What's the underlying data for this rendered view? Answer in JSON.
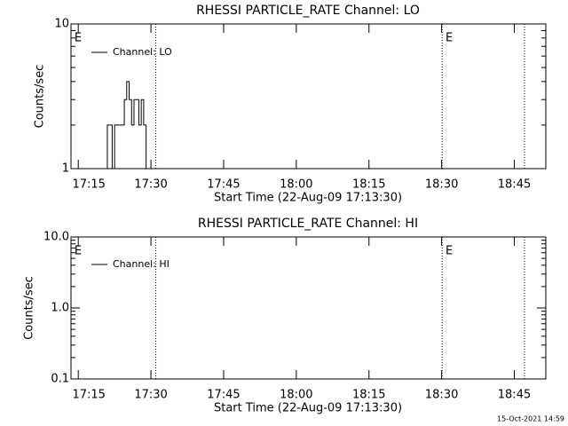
{
  "chart_data": [
    {
      "type": "line",
      "title": "RHESSI PARTICLE_RATE Channel: LO",
      "ylabel": "Counts/sec",
      "xlabel": "Start Time (22-Aug-09 17:13:30)",
      "x": [
        1040.5,
        1041,
        1041.5,
        1042,
        1042.5,
        1043,
        1043.5,
        1044,
        1044.5,
        1045,
        1045.5,
        1046,
        1046.5,
        1047,
        1047.5,
        1048,
        1048.5,
        1049
      ],
      "series": [
        {
          "name": "Channel: LO",
          "color": "#000000",
          "values": [
            1,
            2,
            2,
            1,
            2,
            2,
            2,
            2,
            3,
            4,
            3,
            2,
            3,
            3,
            2,
            3,
            2,
            1
          ]
        }
      ],
      "xlim": [
        1033.5,
        1131.5
      ],
      "xticks": [
        {
          "value": 1035,
          "label": "17:15"
        },
        {
          "value": 1050,
          "label": "17:30"
        },
        {
          "value": 1065,
          "label": "17:45"
        },
        {
          "value": 1080,
          "label": "18:00"
        },
        {
          "value": 1095,
          "label": "18:15"
        },
        {
          "value": 1110,
          "label": "18:30"
        },
        {
          "value": 1125,
          "label": "18:45"
        }
      ],
      "ylim": [
        1,
        10
      ],
      "yticks": [
        1,
        10
      ],
      "log_y": true,
      "vlines": [
        1051.0,
        1110.1,
        1127.1
      ],
      "annotations": [
        {
          "text": "E",
          "x": 1034.2
        },
        {
          "text": "E",
          "x": 1110.8
        }
      ],
      "legend": "upper left"
    },
    {
      "type": "line",
      "title": "RHESSI PARTICLE_RATE Channel: HI",
      "ylabel": "Counts/sec",
      "xlabel": "Start Time (22-Aug-09 17:13:30)",
      "x": [],
      "series": [
        {
          "name": "Channel: HI",
          "color": "#000000",
          "values": []
        }
      ],
      "xlim": [
        1033.5,
        1131.5
      ],
      "xticks": [
        {
          "value": 1035,
          "label": "17:15"
        },
        {
          "value": 1050,
          "label": "17:30"
        },
        {
          "value": 1065,
          "label": "17:45"
        },
        {
          "value": 1080,
          "label": "18:00"
        },
        {
          "value": 1095,
          "label": "18:15"
        },
        {
          "value": 1110,
          "label": "18:30"
        },
        {
          "value": 1125,
          "label": "18:45"
        }
      ],
      "ylim": [
        0.1,
        10
      ],
      "yticks": [
        {
          "value": 0.1,
          "label": "0.1"
        },
        {
          "value": 1,
          "label": "1.0"
        },
        {
          "value": 10,
          "label": "10.0"
        }
      ],
      "log_y": true,
      "vlines": [
        1051.0,
        1110.1,
        1127.1
      ],
      "annotations": [
        {
          "text": "E",
          "x": 1034.2
        },
        {
          "text": "E",
          "x": 1110.8
        }
      ],
      "legend": "upper left"
    }
  ],
  "footer": "15-Oct-2021 14:59"
}
